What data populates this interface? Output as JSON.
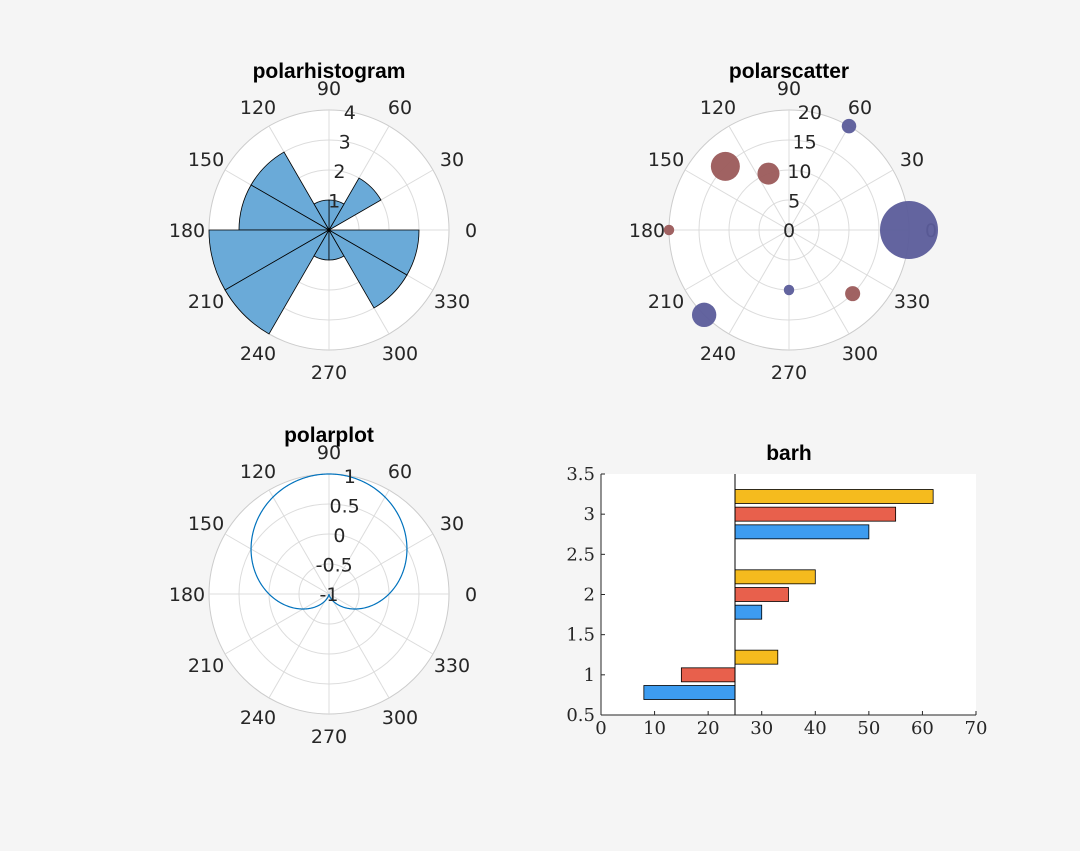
{
  "chart_data": [
    {
      "type": "polarhistogram",
      "title": "polarhistogram",
      "bin_edges_deg": [
        0,
        30,
        60,
        90,
        120,
        150,
        180,
        210,
        240,
        270,
        300,
        330,
        360
      ],
      "counts": [
        0,
        2,
        1,
        1,
        3,
        3,
        4,
        4,
        1,
        1,
        3,
        3
      ],
      "color": "#6aaad8",
      "edge_color": "#000000",
      "rlim": [
        0,
        4
      ],
      "rticks": [
        "1",
        "2",
        "3",
        "4"
      ],
      "theta_ticks": [
        "0",
        "30",
        "60",
        "90",
        "120",
        "150",
        "180",
        "210",
        "240",
        "270",
        "300",
        "330"
      ],
      "grid": true
    },
    {
      "type": "scatter",
      "polar": true,
      "title": "polarscatter",
      "points": [
        {
          "theta": 0,
          "r": 20,
          "size": 1,
          "color": "#5b5c9a"
        },
        {
          "theta": 60,
          "r": 20,
          "size": 0.25,
          "color": "#5b5c9a"
        },
        {
          "theta": 135,
          "r": 15,
          "size": 0.5,
          "color": "#9b5a5a"
        },
        {
          "theta": 110,
          "r": 10,
          "size": 0.38,
          "color": "#9b5a5a"
        },
        {
          "theta": 180,
          "r": 20,
          "size": 0.18,
          "color": "#9b5a5a"
        },
        {
          "theta": 225,
          "r": 20,
          "size": 0.42,
          "color": "#5b5c9a"
        },
        {
          "theta": 270,
          "r": 10,
          "size": 0.18,
          "color": "#5b5c9a"
        },
        {
          "theta": 315,
          "r": 15,
          "size": 0.26,
          "color": "#9b5a5a"
        }
      ],
      "rlim": [
        0,
        20
      ],
      "rticks": [
        "0",
        "5",
        "10",
        "15",
        "20"
      ],
      "theta_ticks": [
        "0",
        "30",
        "60",
        "90",
        "120",
        "150",
        "180",
        "210",
        "240",
        "270",
        "300",
        "330"
      ],
      "grid": true
    },
    {
      "type": "line",
      "polar": true,
      "title": "polarplot",
      "function": "r = sin(theta)",
      "rlim": [
        -1,
        1
      ],
      "rticks": [
        "-1",
        "-0.5",
        "0",
        "0.5",
        "1"
      ],
      "line_color": "#0072bd",
      "theta_ticks": [
        "0",
        "30",
        "60",
        "90",
        "120",
        "150",
        "180",
        "210",
        "240",
        "270",
        "300",
        "330"
      ],
      "grid": true
    },
    {
      "type": "bar",
      "orientation": "horizontal",
      "title": "barh",
      "base_value": 25,
      "categories": [
        1,
        2,
        3
      ],
      "series": [
        {
          "values": [
            8,
            30,
            50
          ],
          "color": "#3d9cf0"
        },
        {
          "values": [
            15,
            35,
            55
          ],
          "color": "#e8604c"
        },
        {
          "values": [
            33,
            40,
            62
          ],
          "color": "#f5bb1e"
        }
      ],
      "xlim": [
        0,
        70
      ],
      "ylim": [
        0.5,
        3.5
      ],
      "xticks": [
        "0",
        "10",
        "20",
        "30",
        "40",
        "50",
        "60",
        "70"
      ],
      "yticks": [
        "0.5",
        "1",
        "1.5",
        "2",
        "2.5",
        "3",
        "3.5"
      ],
      "grid": false
    }
  ]
}
